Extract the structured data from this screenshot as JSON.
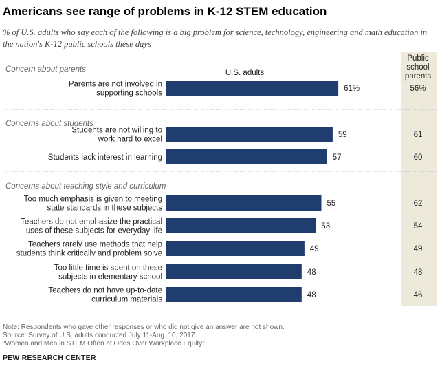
{
  "title": "Americans see range of problems in K-12 STEM education",
  "subtitle": "% of U.S. adults who say each of the following is a big problem for science, technology, engineering and math education in the nation's K-12 public schools these days",
  "chart_data": {
    "type": "bar",
    "orientation": "horizontal",
    "xlim": [
      0,
      100
    ],
    "column_header_main": "U.S. adults",
    "column_header_secondary": [
      "Public",
      "school",
      "parents"
    ],
    "groups": [
      {
        "label": "Concern about parents",
        "items": [
          {
            "label": [
              "Parents are not involved in",
              "supporting schools"
            ],
            "us_adults": 61,
            "us_adults_label": "61%",
            "parents": 56,
            "parents_label": "56%"
          }
        ]
      },
      {
        "label": "Concerns about students",
        "items": [
          {
            "label": [
              "Students are not willing to",
              "work hard to excel"
            ],
            "us_adults": 59,
            "us_adults_label": "59",
            "parents": 61,
            "parents_label": "61"
          },
          {
            "label": [
              "Students lack interest in learning"
            ],
            "us_adults": 57,
            "us_adults_label": "57",
            "parents": 60,
            "parents_label": "60"
          }
        ]
      },
      {
        "label": "Concerns about teaching style and curriculum",
        "items": [
          {
            "label": [
              "Too much emphasis is given to meeting",
              "state standards in these subjects"
            ],
            "us_adults": 55,
            "us_adults_label": "55",
            "parents": 62,
            "parents_label": "62"
          },
          {
            "label": [
              "Teachers do not emphasize the practical",
              "uses of these subjects for everyday life"
            ],
            "us_adults": 53,
            "us_adults_label": "53",
            "parents": 54,
            "parents_label": "54"
          },
          {
            "label": [
              "Teachers rarely use methods that help",
              "students think critically and problem solve"
            ],
            "us_adults": 49,
            "us_adults_label": "49",
            "parents": 49,
            "parents_label": "49"
          },
          {
            "label": [
              "Too little time is spent on these",
              "subjects in elementary school"
            ],
            "us_adults": 48,
            "us_adults_label": "48",
            "parents": 48,
            "parents_label": "48"
          },
          {
            "label": [
              "Teachers do not have up-to-date",
              "curriculum materials"
            ],
            "us_adults": 48,
            "us_adults_label": "48",
            "parents": 46,
            "parents_label": "46"
          }
        ]
      }
    ]
  },
  "colors": {
    "bar": "#1f3d6e",
    "parents_band": "#eeeadb",
    "divider": "#aaaaaa"
  },
  "footer": {
    "note": "Note: Respondents who gave other responses or who did not give an answer are not shown.",
    "source": "Source: Survey of U.S. adults conducted July 11-Aug. 10, 2017.",
    "report": "“Women and Men in STEM Often at Odds Over Workplace Equity”",
    "brand": "PEW RESEARCH CENTER"
  }
}
